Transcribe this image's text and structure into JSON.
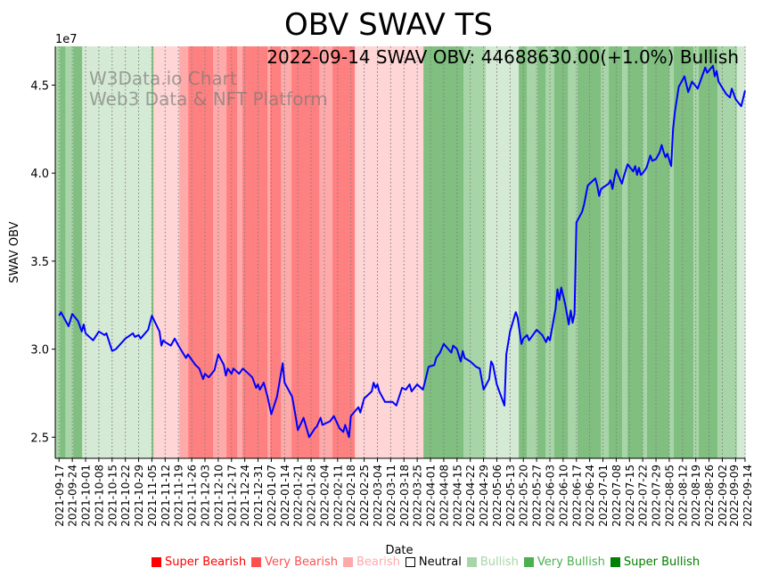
{
  "chart_data": {
    "type": "line",
    "title": "OBV SWAV TS",
    "annotation": "2022-09-14 SWAV OBV: 44688630.00(+1.0%) Bullish",
    "watermark": [
      "W3Data.io Chart",
      "Web3 Data & NFT Platform"
    ],
    "xlabel": "Date",
    "ylabel": "SWAV OBV",
    "y_multiplier_label": "1e7",
    "x_unit": "days since 2021-09-17",
    "xlim": [
      -2,
      362
    ],
    "ylim": [
      2.38,
      4.72
    ],
    "yticks": [
      2.5,
      3.0,
      3.5,
      4.0,
      4.5
    ],
    "ytick_labels": [
      "2.5",
      "3.0",
      "3.5",
      "4.0",
      "4.5"
    ],
    "xtick_days": [
      0,
      7,
      14,
      21,
      28,
      35,
      42,
      49,
      56,
      63,
      70,
      77,
      84,
      91,
      98,
      105,
      112,
      119,
      126,
      133,
      140,
      147,
      154,
      161,
      168,
      175,
      182,
      189,
      196,
      203,
      210,
      217,
      224,
      231,
      238,
      245,
      252,
      259,
      266,
      273,
      280,
      287,
      294,
      301,
      308,
      315,
      322,
      329,
      336,
      343,
      350,
      357,
      362
    ],
    "xtick_labels": [
      "2021-09-17",
      "2021-09-24",
      "2021-10-01",
      "2021-10-08",
      "2021-10-15",
      "2021-10-22",
      "2021-10-29",
      "2021-11-05",
      "2021-11-12",
      "2021-11-19",
      "2021-11-26",
      "2021-12-03",
      "2021-12-10",
      "2021-12-17",
      "2021-12-24",
      "2021-12-31",
      "2022-01-07",
      "2022-01-14",
      "2022-01-21",
      "2022-01-28",
      "2022-02-04",
      "2022-02-11",
      "2022-02-18",
      "2022-02-25",
      "2022-03-04",
      "2022-03-11",
      "2022-03-18",
      "2022-03-25",
      "2022-04-01",
      "2022-04-08",
      "2022-04-15",
      "2022-04-22",
      "2022-04-29",
      "2022-05-06",
      "2022-05-13",
      "2022-05-20",
      "2022-05-27",
      "2022-06-03",
      "2022-06-10",
      "2022-06-17",
      "2022-06-24",
      "2022-07-01",
      "2022-07-08",
      "2022-07-15",
      "2022-07-22",
      "2022-07-29",
      "2022-08-05",
      "2022-08-12",
      "2022-08-19",
      "2022-08-26",
      "2022-09-02",
      "2022-09-09",
      "2022-09-14"
    ],
    "grid": "x-dotted",
    "series": [
      {
        "name": "SWAV OBV",
        "color": "#0000ff",
        "x": [
          0,
          1,
          5,
          7,
          10,
          12,
          13,
          14,
          18,
          21,
          24,
          25,
          28,
          30,
          35,
          39,
          40,
          42,
          43,
          47,
          49,
          53,
          54,
          55,
          56,
          59,
          61,
          63,
          67,
          68,
          72,
          74,
          76,
          77,
          79,
          82,
          84,
          86,
          87,
          88,
          89,
          91,
          92,
          95,
          97,
          100,
          102,
          104,
          105,
          106,
          108,
          110,
          112,
          115,
          118,
          119,
          123,
          125,
          126,
          129,
          132,
          135,
          136,
          138,
          139,
          143,
          145,
          148,
          150,
          151,
          153,
          154,
          158,
          159,
          161,
          165,
          166,
          167,
          168,
          169,
          172,
          176,
          178,
          181,
          183,
          185,
          186,
          189,
          192,
          193,
          195,
          198,
          199,
          201,
          203,
          207,
          208,
          210,
          212,
          213,
          214,
          217,
          220,
          222,
          224,
          227,
          228,
          229,
          231,
          235,
          236,
          238,
          241,
          242,
          244,
          245,
          247,
          248,
          252,
          255,
          257,
          258,
          259,
          262,
          263,
          264,
          265,
          267,
          269,
          270,
          271,
          272,
          273,
          276,
          277,
          279,
          283,
          284,
          285,
          286,
          290,
          291,
          292,
          293,
          294,
          295,
          297,
          298,
          300,
          303,
          304,
          305,
          306,
          307,
          308,
          310,
          312,
          313,
          315,
          317,
          318,
          319,
          320,
          321,
          323,
          324,
          325,
          327,
          330,
          332,
          334,
          337,
          339,
          341,
          342,
          345,
          346,
          347,
          348,
          352,
          354,
          355,
          357,
          360,
          362
        ],
        "y": [
          3.19,
          3.21,
          3.13,
          3.2,
          3.16,
          3.1,
          3.14,
          3.09,
          3.05,
          3.1,
          3.08,
          3.09,
          2.99,
          3.0,
          3.06,
          3.09,
          3.07,
          3.08,
          3.06,
          3.11,
          3.19,
          3.1,
          3.02,
          3.05,
          3.04,
          3.02,
          3.06,
          3.02,
          2.95,
          2.97,
          2.91,
          2.89,
          2.83,
          2.86,
          2.84,
          2.88,
          2.97,
          2.93,
          2.91,
          2.85,
          2.89,
          2.86,
          2.89,
          2.86,
          2.89,
          2.86,
          2.84,
          2.78,
          2.8,
          2.77,
          2.81,
          2.73,
          2.63,
          2.73,
          2.92,
          2.81,
          2.73,
          2.61,
          2.54,
          2.61,
          2.5,
          2.55,
          2.56,
          2.61,
          2.57,
          2.59,
          2.62,
          2.55,
          2.53,
          2.57,
          2.5,
          2.62,
          2.67,
          2.64,
          2.72,
          2.76,
          2.81,
          2.78,
          2.8,
          2.76,
          2.7,
          2.7,
          2.68,
          2.78,
          2.77,
          2.8,
          2.76,
          2.8,
          2.77,
          2.81,
          2.9,
          2.91,
          2.95,
          2.98,
          3.03,
          2.98,
          3.02,
          3.0,
          2.93,
          2.99,
          2.95,
          2.93,
          2.9,
          2.89,
          2.77,
          2.83,
          2.93,
          2.91,
          2.8,
          2.68,
          2.97,
          3.1,
          3.21,
          3.18,
          3.03,
          3.06,
          3.08,
          3.05,
          3.11,
          3.08,
          3.04,
          3.07,
          3.05,
          3.23,
          3.34,
          3.28,
          3.35,
          3.26,
          3.14,
          3.22,
          3.15,
          3.2,
          3.72,
          3.78,
          3.82,
          3.93,
          3.97,
          3.93,
          3.87,
          3.91,
          3.94,
          3.96,
          3.91,
          3.97,
          4.02,
          3.99,
          3.94,
          3.98,
          4.05,
          4.01,
          4.04,
          3.99,
          4.03,
          3.99,
          4.0,
          4.03,
          4.1,
          4.07,
          4.08,
          4.12,
          4.16,
          4.12,
          4.09,
          4.11,
          4.04,
          4.25,
          4.35,
          4.49,
          4.55,
          4.46,
          4.52,
          4.48,
          4.54,
          4.6,
          4.57,
          4.61,
          4.55,
          4.58,
          4.52,
          4.45,
          4.43,
          4.48,
          4.42,
          4.38,
          4.469
        ]
      }
    ],
    "sentiment_bands": [
      [
        -2,
        0.5,
        "very_bullish"
      ],
      [
        0.5,
        3.3,
        "super_bullish"
      ],
      [
        3.3,
        7.5,
        "very_bullish"
      ],
      [
        7.5,
        12.2,
        "super_bullish"
      ],
      [
        12.2,
        48.9,
        "bullish"
      ],
      [
        48.9,
        49.8,
        "super_bullish"
      ],
      [
        49.8,
        63.5,
        "bearish"
      ],
      [
        63.5,
        68.2,
        "very_bearish"
      ],
      [
        68.2,
        81.3,
        "super_bearish"
      ],
      [
        81.3,
        88.4,
        "very_bearish"
      ],
      [
        88.4,
        94,
        "super_bearish"
      ],
      [
        94,
        96.8,
        "very_bearish"
      ],
      [
        96.8,
        110,
        "super_bearish"
      ],
      [
        110,
        111.4,
        "very_bearish"
      ],
      [
        111.4,
        117.1,
        "super_bearish"
      ],
      [
        117.1,
        122.7,
        "very_bearish"
      ],
      [
        122.7,
        137.3,
        "super_bearish"
      ],
      [
        137.3,
        144.3,
        "very_bearish"
      ],
      [
        144.3,
        156.1,
        "super_bearish"
      ],
      [
        156.1,
        192.3,
        "bearish"
      ],
      [
        192.3,
        213.4,
        "super_bullish"
      ],
      [
        213.4,
        225.2,
        "very_bullish"
      ],
      [
        225.2,
        242.6,
        "bullish"
      ],
      [
        242.6,
        246.8,
        "super_bullish"
      ],
      [
        246.8,
        252.5,
        "very_bullish"
      ],
      [
        252.5,
        256.7,
        "super_bullish"
      ],
      [
        256.7,
        261.4,
        "very_bullish"
      ],
      [
        261.4,
        268.5,
        "super_bullish"
      ],
      [
        268.5,
        273.6,
        "very_bullish"
      ],
      [
        273.6,
        285.9,
        "super_bullish"
      ],
      [
        285.9,
        290.1,
        "very_bullish"
      ],
      [
        290.1,
        297.1,
        "super_bullish"
      ],
      [
        297.1,
        300,
        "very_bullish"
      ],
      [
        300,
        308,
        "super_bullish"
      ],
      [
        308,
        310.3,
        "very_bullish"
      ],
      [
        310.3,
        322,
        "super_bullish"
      ],
      [
        322,
        324.4,
        "very_bullish"
      ],
      [
        324.4,
        334.7,
        "super_bullish"
      ],
      [
        334.7,
        337.6,
        "very_bullish"
      ],
      [
        337.6,
        347.4,
        "super_bullish"
      ],
      [
        347.4,
        357.8,
        "very_bullish"
      ],
      [
        357.8,
        362,
        "bullish"
      ]
    ],
    "band_colors": {
      "super_bearish": "#ff8080",
      "very_bearish": "#ffaaaa",
      "bearish": "#ffd5d5",
      "bullish": "#d5ead5",
      "very_bullish": "#a8d5a8",
      "super_bullish": "#80bf80"
    },
    "legend": {
      "placement": "bottom",
      "items": [
        {
          "label": "Super Bearish",
          "color": "#ff0000"
        },
        {
          "label": "Very Bearish",
          "color": "#ff5050"
        },
        {
          "label": "Bearish",
          "color": "#ffaaaa"
        },
        {
          "label": "Neutral",
          "color": "#000000"
        },
        {
          "label": "Bullish",
          "color": "#a8d5a8"
        },
        {
          "label": "Very Bullish",
          "color": "#4caf50"
        },
        {
          "label": "Super Bullish",
          "color": "#008000"
        }
      ]
    }
  }
}
